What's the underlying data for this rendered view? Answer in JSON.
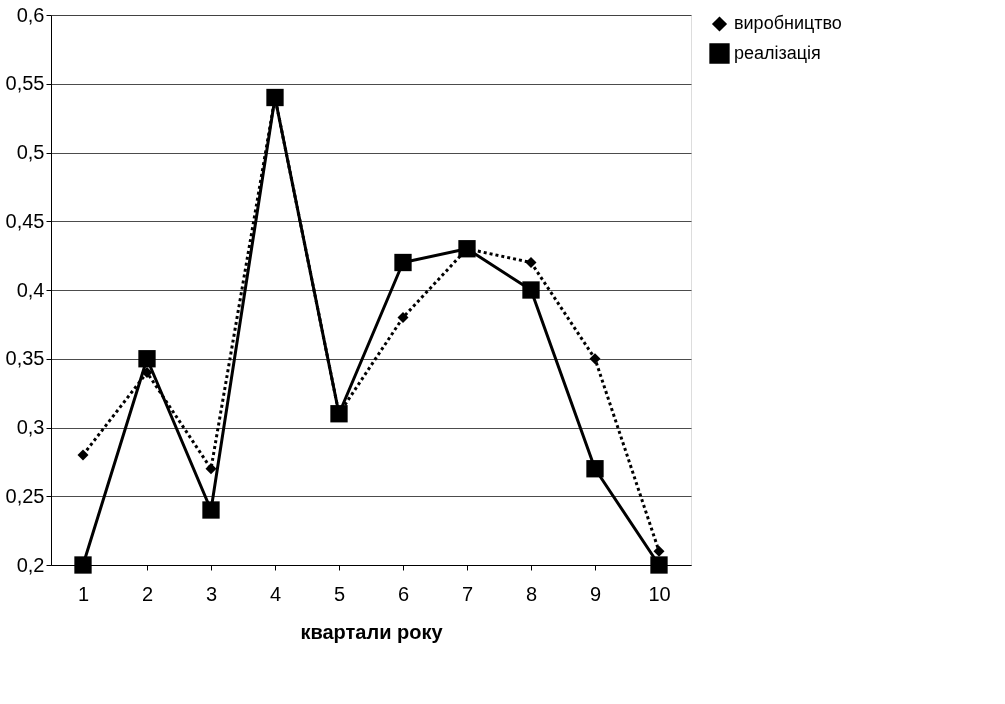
{
  "chart_data": {
    "type": "line",
    "xlabel": "квартали року",
    "categories": [
      "1",
      "2",
      "3",
      "4",
      "5",
      "6",
      "7",
      "8",
      "9",
      "10"
    ],
    "series": [
      {
        "name": "виробництво",
        "color": "#000000",
        "marker": "diamond",
        "line_style": "dotted",
        "values": [
          0.28,
          0.34,
          0.27,
          0.54,
          0.31,
          0.38,
          0.43,
          0.42,
          0.35,
          0.21
        ]
      },
      {
        "name": "реалізація",
        "color": "#000000",
        "marker": "square",
        "line_style": "solid",
        "values": [
          0.2,
          0.35,
          0.24,
          0.54,
          0.31,
          0.42,
          0.43,
          0.4,
          0.27,
          0.2
        ]
      }
    ],
    "ylim": [
      0.2,
      0.6
    ],
    "yticks": [
      {
        "value": 0.2,
        "label": "0,2"
      },
      {
        "value": 0.25,
        "label": "0,25"
      },
      {
        "value": 0.3,
        "label": "0,3"
      },
      {
        "value": 0.35,
        "label": "0,35"
      },
      {
        "value": 0.4,
        "label": "0,4"
      },
      {
        "value": 0.45,
        "label": "0,45"
      },
      {
        "value": 0.5,
        "label": "0,5"
      },
      {
        "value": 0.55,
        "label": "0,55"
      },
      {
        "value": 0.6,
        "label": "0,6"
      }
    ],
    "grid": "y",
    "legend": "right"
  }
}
